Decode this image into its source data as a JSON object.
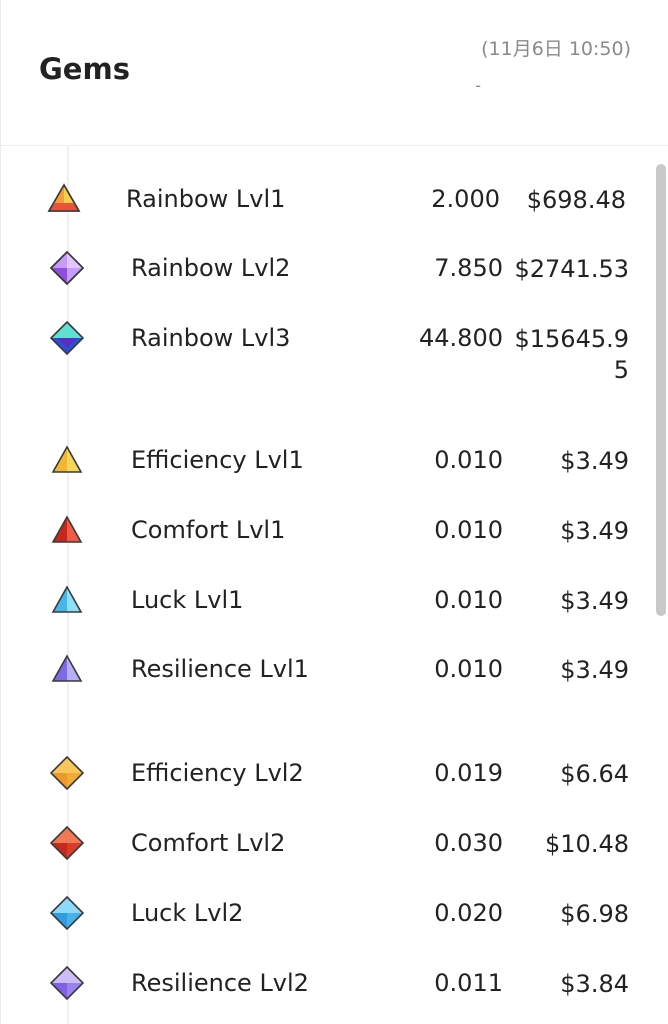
{
  "header": {
    "title": "Gems",
    "timestamp": "(11月6日 10:50)",
    "subtext": "-"
  },
  "rows": [
    {
      "name": "Rainbow Lvl1",
      "amount": "2.000",
      "price": "$698.48",
      "icon": "rainbow-triangle-icon",
      "color": "#f4c430"
    },
    {
      "name": "Rainbow Lvl2",
      "amount": "7.850",
      "price": "$2741.53",
      "icon": "rainbow-diamond-icon",
      "color": "#b27cf2"
    },
    {
      "name": "Rainbow Lvl3",
      "amount": "44.800",
      "price": "$15645.95",
      "icon": "rainbow-octahedron-icon",
      "color": "#3bd1c5"
    },
    {
      "name": "Efficiency Lvl1",
      "amount": "0.010",
      "price": "$3.49",
      "icon": "efficiency-triangle-icon",
      "color": "#f5c242"
    },
    {
      "name": "Comfort Lvl1",
      "amount": "0.010",
      "price": "$3.49",
      "icon": "comfort-triangle-icon",
      "color": "#e0362b"
    },
    {
      "name": "Luck Lvl1",
      "amount": "0.010",
      "price": "$3.49",
      "icon": "luck-triangle-icon",
      "color": "#5cc8ef"
    },
    {
      "name": "Resilience Lvl1",
      "amount": "0.010",
      "price": "$3.49",
      "icon": "resilience-triangle-icon",
      "color": "#9a8cf0"
    },
    {
      "name": "Efficiency Lvl2",
      "amount": "0.019",
      "price": "$6.64",
      "icon": "efficiency-diamond-icon",
      "color": "#f5b03c"
    },
    {
      "name": "Comfort Lvl2",
      "amount": "0.030",
      "price": "$10.48",
      "icon": "comfort-diamond-icon",
      "color": "#e2452f"
    },
    {
      "name": "Luck Lvl2",
      "amount": "0.020",
      "price": "$6.98",
      "icon": "luck-diamond-icon",
      "color": "#4bb5ee"
    },
    {
      "name": "Resilience Lvl2",
      "amount": "0.011",
      "price": "$3.84",
      "icon": "resilience-diamond-icon",
      "color": "#a68cf2"
    }
  ]
}
